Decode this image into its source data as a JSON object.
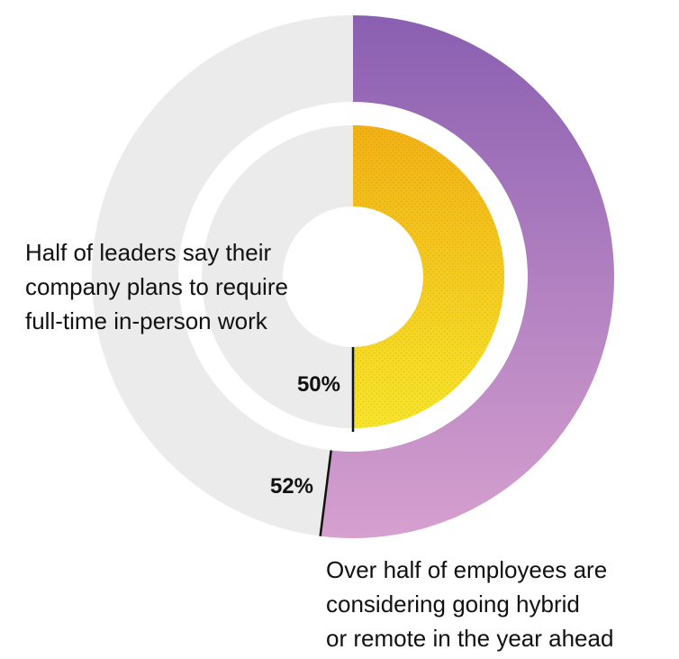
{
  "chart_data": {
    "type": "pie",
    "variant": "nested-donut",
    "rings": [
      {
        "name": "employees",
        "value": 52,
        "value_label": "52%",
        "remainder": 48,
        "annotation": [
          "Over half of employees are",
          "considering going hybrid",
          "or remote in the year ahead"
        ]
      },
      {
        "name": "leaders",
        "value": 50,
        "value_label": "50%",
        "remainder": 50,
        "annotation": [
          "Half of leaders say their",
          "company plans to require",
          "full-time in-person work"
        ]
      }
    ],
    "colors": {
      "track": "#ebebeb",
      "outer_start": "#8a5fb1",
      "outer_end": "#d6a0cf",
      "inner_start": "#f2b115",
      "inner_end": "#f7e52a",
      "divider": "#111111"
    }
  }
}
